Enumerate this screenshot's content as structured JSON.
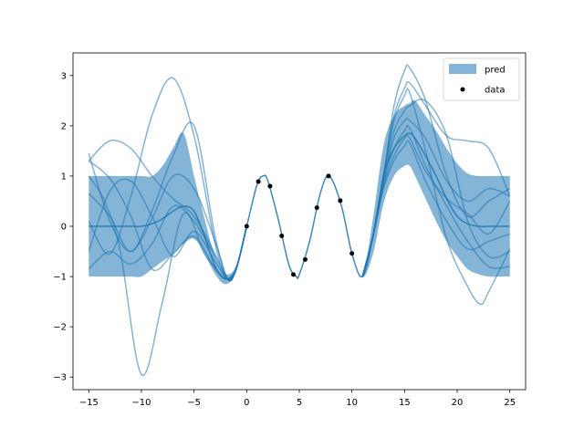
{
  "chart_data": {
    "type": "line",
    "title": "",
    "xlabel": "",
    "ylabel": "",
    "xlim": [
      -16.5,
      26.5
    ],
    "ylim": [
      -3.25,
      3.45
    ],
    "xticks": [
      -15,
      -10,
      -5,
      0,
      5,
      10,
      15,
      20,
      25
    ],
    "yticks": [
      -3,
      -2,
      -1,
      0,
      1,
      2,
      3
    ],
    "xtick_labels": [
      "−15",
      "−10",
      "−5",
      "0",
      "5",
      "10",
      "15",
      "20",
      "25"
    ],
    "ytick_labels": [
      "−3",
      "−2",
      "−1",
      "0",
      "1",
      "2",
      "3"
    ],
    "grid": false,
    "legend": {
      "placement": "top-right",
      "entries": [
        {
          "key": "pred",
          "label": "pred",
          "kind": "band"
        },
        {
          "key": "data",
          "label": "data",
          "kind": "marker"
        }
      ]
    },
    "colors": {
      "band": "#1f77b4",
      "band_opacity": 0.55,
      "sample": "#1f77b4",
      "sample_opacity": 0.55,
      "data": "#000000"
    },
    "prediction_band": {
      "x": [
        -15,
        -14,
        -13,
        -12,
        -11,
        -10,
        -9,
        -8,
        -7,
        -6,
        -5,
        -4,
        -3,
        -2,
        -1,
        0,
        1,
        1.57,
        2,
        3,
        4,
        4.71,
        5,
        6,
        7,
        7.85,
        9,
        10,
        11,
        12,
        13,
        14,
        15,
        15.5,
        16,
        17,
        18,
        19,
        20,
        21,
        22,
        23,
        24,
        25
      ],
      "mean": [
        0,
        0,
        0,
        0,
        0,
        0,
        0.05,
        0.15,
        0.3,
        0.4,
        0.3,
        -0.2,
        -0.8,
        -1.05,
        -0.84,
        0,
        0.84,
        1.0,
        0.91,
        0.14,
        -0.76,
        -1.0,
        -0.96,
        -0.28,
        0.66,
        1.0,
        0.41,
        -0.54,
        -1.0,
        -0.2,
        1.0,
        1.55,
        1.8,
        1.85,
        1.75,
        1.4,
        1.0,
        0.55,
        0.2,
        0.05,
        0,
        0,
        0,
        0
      ],
      "lower": [
        -1,
        -1,
        -1,
        -1,
        -1,
        -1,
        -0.85,
        -0.7,
        -0.55,
        -0.35,
        -0.25,
        -0.55,
        -0.95,
        -1.15,
        -0.9,
        -0.01,
        0.83,
        0.99,
        0.9,
        0.13,
        -0.77,
        -1.01,
        -0.97,
        -0.29,
        0.65,
        0.99,
        0.4,
        -0.55,
        -1.02,
        -0.55,
        0.45,
        1.0,
        1.2,
        1.2,
        1.0,
        0.55,
        0.1,
        -0.3,
        -0.6,
        -0.85,
        -0.95,
        -1,
        -1,
        -1
      ],
      "upper": [
        1,
        1,
        1,
        1,
        1,
        1,
        1.0,
        1.2,
        1.55,
        1.85,
        1.0,
        0.15,
        -0.6,
        -0.95,
        -0.78,
        0.01,
        0.85,
        1.01,
        0.92,
        0.15,
        -0.75,
        -0.99,
        -0.95,
        -0.27,
        0.67,
        1.01,
        0.42,
        -0.53,
        -0.98,
        0.15,
        1.6,
        2.2,
        2.4,
        2.45,
        2.5,
        2.2,
        1.9,
        1.55,
        1.25,
        1.05,
        1.0,
        1.0,
        1,
        1
      ]
    },
    "samples": [
      {
        "x": [
          -15,
          -13,
          -11,
          -9,
          -7,
          -5,
          -3,
          -1.8,
          -1,
          0
        ],
        "y": [
          1.3,
          1.7,
          1.55,
          1.0,
          0.55,
          0.2,
          -0.55,
          -1.05,
          -0.85,
          0
        ]
      },
      {
        "x": [
          -15,
          -13,
          -11,
          -9,
          -7,
          -5,
          -3,
          -1.8,
          -1,
          0
        ],
        "y": [
          1.45,
          0.1,
          -0.5,
          0.15,
          1.0,
          0.75,
          -0.3,
          -1.05,
          -0.85,
          0
        ]
      },
      {
        "x": [
          -15,
          -13,
          -11,
          -9,
          -7,
          -5,
          -3,
          -1.8,
          -1,
          0
        ],
        "y": [
          -0.5,
          0.7,
          0.9,
          0.2,
          -0.6,
          -0.1,
          -0.7,
          -1.05,
          -0.85,
          0
        ]
      },
      {
        "x": [
          -15,
          -13.5,
          -12,
          -10,
          -8,
          -6,
          -4,
          -2.5,
          -1.8,
          -1,
          0
        ],
        "y": [
          1.0,
          0.5,
          -0.5,
          -2.95,
          -1.5,
          0.25,
          -0.55,
          -0.95,
          -1.05,
          -0.85,
          0
        ]
      },
      {
        "x": [
          -15,
          -13,
          -11,
          -9,
          -7,
          -5,
          -3,
          -1.8,
          -1,
          0
        ],
        "y": [
          0.1,
          -0.55,
          0.6,
          2.2,
          2.95,
          1.8,
          -0.35,
          -1.05,
          -0.85,
          0
        ]
      },
      {
        "x": [
          -15,
          -13,
          -11,
          -9,
          -7,
          -5,
          -3,
          -1.8,
          -1,
          0
        ],
        "y": [
          1.3,
          0.95,
          0.2,
          -0.85,
          -0.55,
          -0.2,
          -0.85,
          -1.05,
          -0.85,
          0
        ]
      },
      {
        "x": [
          -15,
          -13,
          -11,
          -9,
          -7,
          -5,
          -3,
          -1.8,
          -1,
          0
        ],
        "y": [
          0.65,
          0.2,
          -0.5,
          0.3,
          1.4,
          2.0,
          -0.2,
          -1.05,
          -0.85,
          0
        ]
      },
      {
        "x": [
          -15,
          -13,
          -11,
          -9,
          -7,
          -5,
          -3,
          -1.8,
          -1,
          0
        ],
        "y": [
          -0.85,
          -0.5,
          -0.75,
          -0.35,
          0.4,
          0.1,
          -0.6,
          -1.05,
          -0.85,
          0
        ]
      },
      {
        "x": [
          11,
          12,
          13,
          14,
          15,
          15.5,
          17,
          19,
          21,
          23,
          25
        ],
        "y": [
          -1.0,
          -0.2,
          1.0,
          2.4,
          3.1,
          3.15,
          2.5,
          1.0,
          0.2,
          0.5,
          0.75
        ]
      },
      {
        "x": [
          11,
          12,
          13,
          14,
          15,
          15.5,
          17,
          19,
          21,
          23,
          25
        ],
        "y": [
          -1.0,
          -0.2,
          1.0,
          2.2,
          2.75,
          2.85,
          2.4,
          1.8,
          1.7,
          1.55,
          0.6
        ]
      },
      {
        "x": [
          11,
          12,
          13,
          14,
          15,
          15.5,
          17,
          19,
          21,
          22.2,
          23,
          25
        ],
        "y": [
          -1.0,
          -0.2,
          1.0,
          2.1,
          2.6,
          2.65,
          1.5,
          -0.25,
          -1.2,
          -1.55,
          -1.3,
          -0.45
        ]
      },
      {
        "x": [
          11,
          12,
          13,
          14,
          15,
          15.5,
          17,
          19,
          21,
          23,
          25
        ],
        "y": [
          -1.0,
          -0.2,
          0.95,
          1.9,
          2.3,
          2.4,
          2.5,
          1.8,
          0.1,
          -0.6,
          -0.5
        ]
      },
      {
        "x": [
          11,
          12,
          13,
          14,
          15,
          15.5,
          17,
          19,
          21,
          23,
          25
        ],
        "y": [
          -1.0,
          -0.2,
          0.9,
          1.75,
          2.1,
          2.1,
          1.75,
          0.9,
          0.5,
          0.75,
          0.6
        ]
      },
      {
        "x": [
          11,
          12,
          13,
          14,
          15,
          15.5,
          17,
          19,
          21,
          23,
          25
        ],
        "y": [
          -1.0,
          -0.2,
          0.85,
          1.55,
          1.9,
          1.95,
          1.2,
          0.4,
          -0.3,
          -0.8,
          -0.8
        ]
      },
      {
        "x": [
          11,
          12,
          13,
          14,
          15,
          15.5,
          17,
          19,
          21,
          23,
          25
        ],
        "y": [
          -1.0,
          -0.2,
          0.8,
          1.4,
          1.75,
          1.75,
          1.1,
          0.55,
          0.25,
          -0.15,
          0.5
        ]
      },
      {
        "x": [
          11,
          12,
          13,
          14,
          15,
          15.5,
          17,
          19,
          21,
          23,
          25
        ],
        "y": [
          -1.0,
          -0.2,
          0.75,
          1.3,
          1.6,
          1.65,
          0.9,
          0.1,
          -0.45,
          -0.3,
          -0.15
        ]
      }
    ],
    "observations": {
      "x": [
        0.0,
        1.11,
        2.22,
        3.33,
        4.44,
        5.56,
        6.67,
        7.78,
        8.89,
        10.0
      ],
      "y": [
        0.0,
        0.89,
        0.8,
        -0.19,
        -0.96,
        -0.66,
        0.37,
        1.0,
        0.51,
        -0.54
      ]
    }
  }
}
